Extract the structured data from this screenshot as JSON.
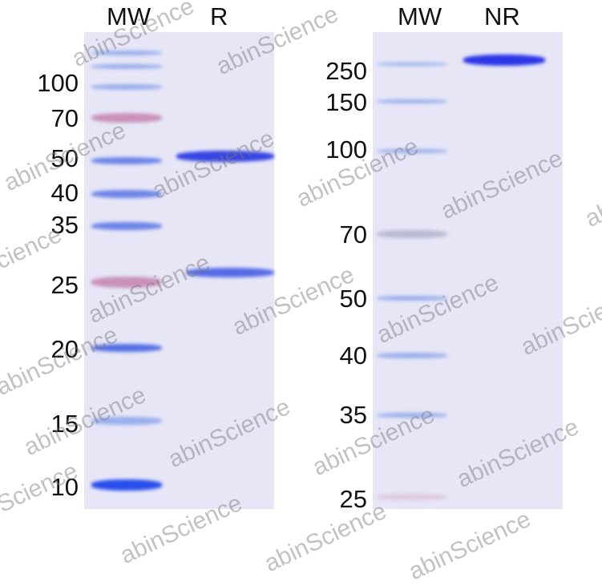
{
  "left_panel": {
    "lanes": [
      "MW",
      "R"
    ],
    "markers": [
      "100",
      "70",
      "50",
      "40",
      "35",
      "25",
      "20",
      "15",
      "10"
    ]
  },
  "right_panel": {
    "lanes": [
      "MW",
      "NR"
    ],
    "markers": [
      "250",
      "150",
      "100",
      "70",
      "50",
      "40",
      "35",
      "25"
    ]
  },
  "watermark": "abinScience",
  "colors": {
    "gel": "#e6e6f7",
    "band": "#3b4fe0",
    "prestained": "#c27aa6"
  }
}
